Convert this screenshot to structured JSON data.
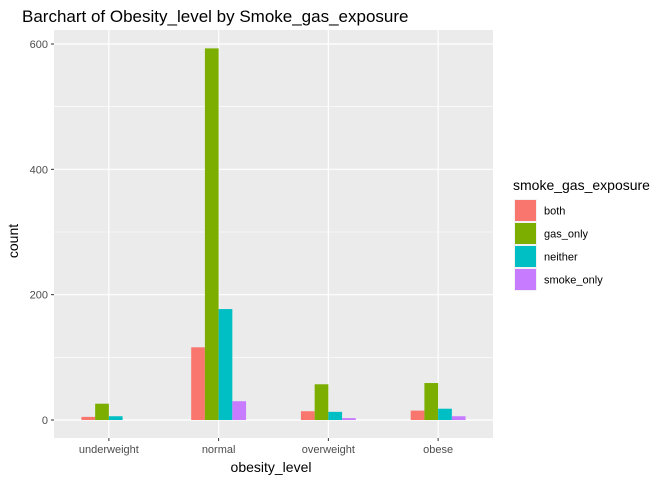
{
  "chart_data": {
    "type": "bar",
    "title": "Barchart of Obesity_level by Smoke_gas_exposure",
    "xlabel": "obesity_level",
    "ylabel": "count",
    "categories": [
      "underweight",
      "normal",
      "overweight",
      "obese"
    ],
    "series": [
      {
        "name": "both",
        "color": "#F8766D",
        "values": [
          5,
          116,
          14,
          15
        ]
      },
      {
        "name": "gas_only",
        "color": "#7CAE00",
        "values": [
          26,
          593,
          57,
          59
        ]
      },
      {
        "name": "neither",
        "color": "#00BFC4",
        "values": [
          6,
          177,
          13,
          18
        ]
      },
      {
        "name": "smoke_only",
        "color": "#C77CFF",
        "values": [
          0,
          30,
          3,
          6
        ]
      }
    ],
    "ylim": [
      -31,
      630
    ],
    "yticks": [
      0,
      200,
      400,
      600
    ],
    "ytick_labels": [
      "0",
      "200",
      "400",
      "600"
    ],
    "legend_title": "smoke_gas_exposure",
    "legend_position": "right",
    "grid": true,
    "panel_background": "#EBEBEB",
    "grid_color": "#FFFFFF"
  }
}
